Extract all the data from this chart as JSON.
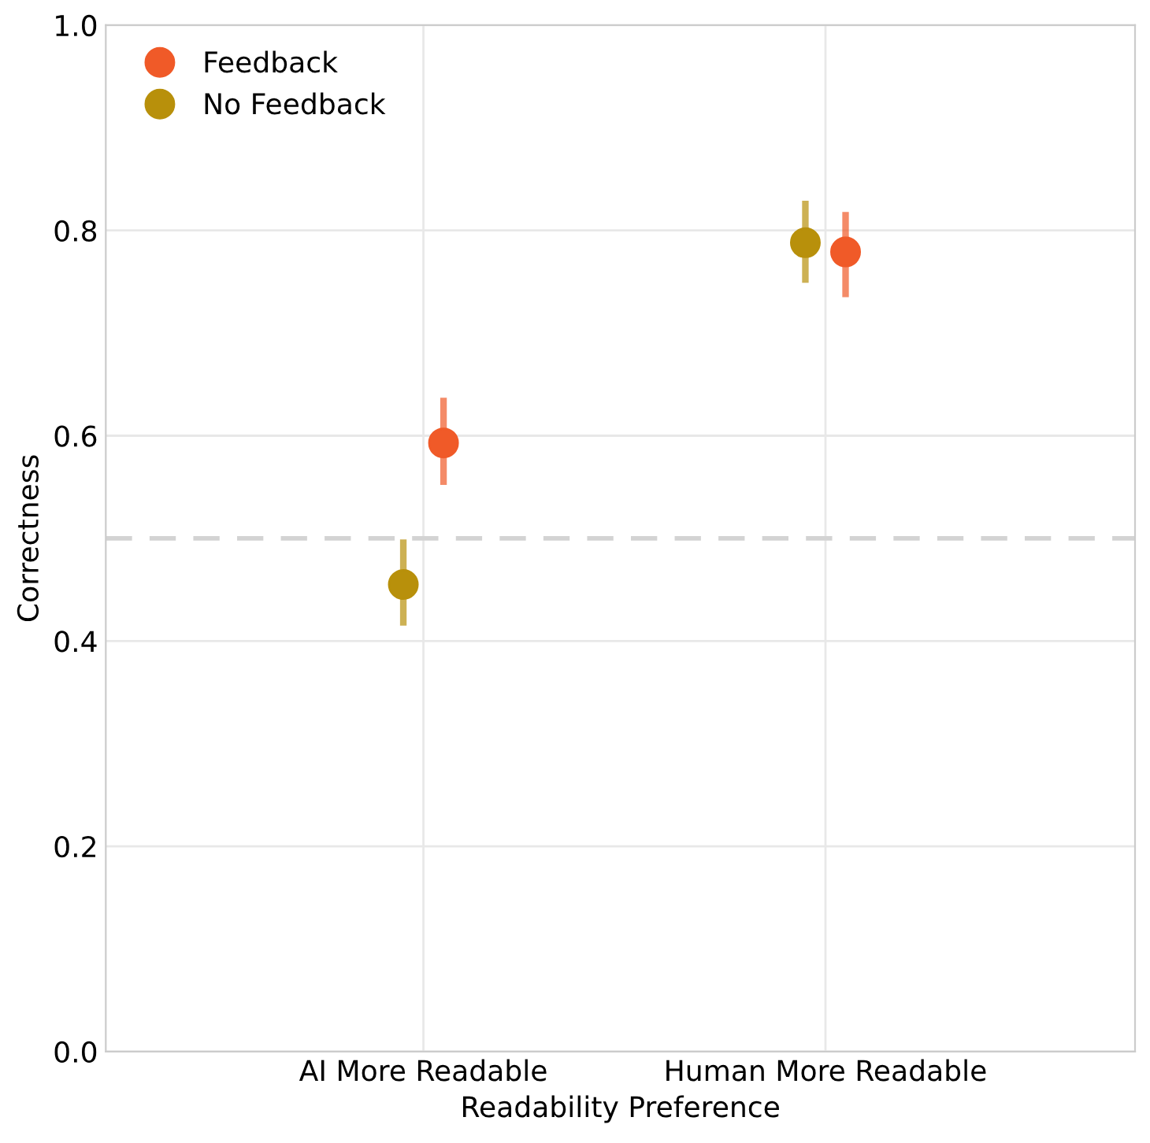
{
  "chart_data": {
    "type": "scatter",
    "xlabel": "Readability Preference",
    "ylabel": "Correctness",
    "categories": [
      "AI More Readable",
      "Human More Readable"
    ],
    "series": [
      {
        "name": "Feedback",
        "color": "#f05a28",
        "values": [
          0.593,
          0.779
        ],
        "errors": [
          [
            0.552,
            0.637
          ],
          [
            0.735,
            0.818
          ]
        ]
      },
      {
        "name": "No Feedback",
        "color": "#b8900b",
        "values": [
          0.455,
          0.788
        ],
        "errors": [
          [
            0.415,
            0.499
          ],
          [
            0.749,
            0.829
          ]
        ]
      }
    ],
    "ylim": [
      0,
      1.0
    ],
    "yticks": [
      {
        "value": 0,
        "label": "0.0"
      },
      0.2,
      0.4,
      0.6,
      0.8,
      {
        "value": 1,
        "label": "1.0"
      }
    ],
    "ref_lines": [
      {
        "axis": "y",
        "value": 0.5,
        "label": null,
        "color": "#d3d3d3",
        "line_style": "dashed"
      }
    ],
    "grid": true,
    "legend": "top left",
    "marker": "circle"
  }
}
